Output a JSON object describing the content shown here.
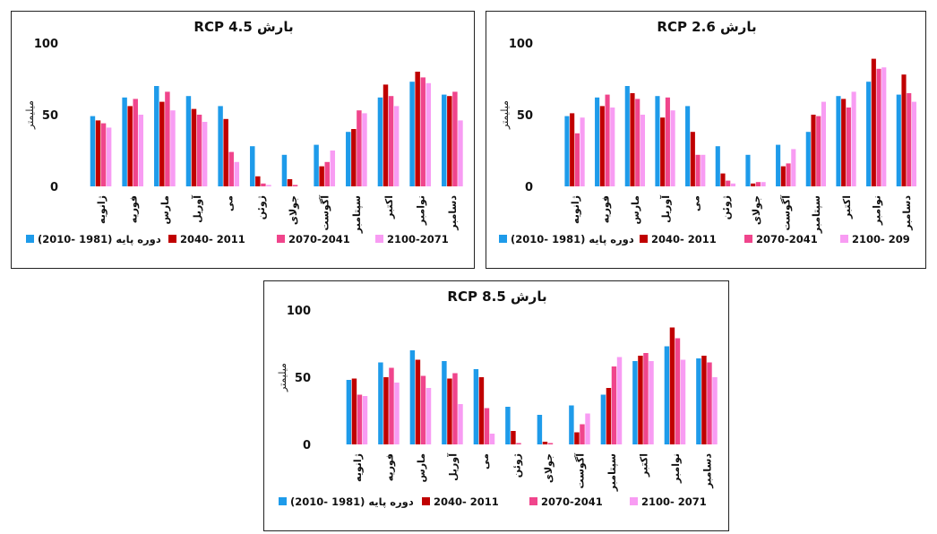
{
  "colors": [
    "#1E9BEA",
    "#C00000",
    "#F0458C",
    "#F89CF3"
  ],
  "chart_data": [
    {
      "type": "bar",
      "title": "بارش RCP 4.5",
      "ylabel": "میلیمتر",
      "xlabel": "",
      "ylim": [
        0,
        100
      ],
      "yticks": [
        "0",
        "50",
        "100"
      ],
      "grid": false,
      "legend": "bottom",
      "categories": [
        "ژانویه",
        "فوریه",
        "مارس",
        "آوریل",
        "می",
        "ژوئن",
        "جولای",
        "آگوست",
        "سپتامبر",
        "اکتبر",
        "نوامبر",
        "دسامبر"
      ],
      "series": [
        {
          "name": "دوره پایه (1981 -2010)",
          "values": [
            49,
            62,
            70,
            63,
            56,
            28,
            22,
            29,
            38,
            62,
            73,
            64
          ]
        },
        {
          "name": "2040- 2011",
          "values": [
            46,
            56,
            59,
            54,
            47,
            7,
            5,
            14,
            40,
            71,
            80,
            63
          ]
        },
        {
          "name": "2070-2041",
          "values": [
            44,
            61,
            66,
            50,
            24,
            2,
            1,
            17,
            53,
            63,
            76,
            66
          ]
        },
        {
          "name": "2100-2071",
          "values": [
            41,
            50,
            53,
            45,
            17,
            1,
            0,
            25,
            51,
            56,
            72,
            46
          ]
        }
      ]
    },
    {
      "type": "bar",
      "title": "بارش RCP 2.6",
      "ylabel": "میلیمتر",
      "xlabel": "",
      "ylim": [
        0,
        100
      ],
      "yticks": [
        "0",
        "50",
        "100"
      ],
      "grid": false,
      "legend": "bottom",
      "categories": [
        "ژانویه",
        "فوریه",
        "مارس",
        "آوریل",
        "می",
        "ژوئن",
        "جولای",
        "آگوست",
        "سپتامبر",
        "اکتبر",
        "نوامبر",
        "دسامبر"
      ],
      "series": [
        {
          "name": "دوره پایه (1981 -2010)",
          "values": [
            49,
            62,
            70,
            63,
            56,
            28,
            22,
            29,
            38,
            63,
            73,
            64
          ]
        },
        {
          "name": "2040- 2011",
          "values": [
            51,
            56,
            65,
            48,
            38,
            9,
            2,
            14,
            50,
            61,
            89,
            78
          ]
        },
        {
          "name": "2070-2041",
          "values": [
            37,
            64,
            61,
            62,
            22,
            4,
            3,
            16,
            49,
            55,
            82,
            65
          ]
        },
        {
          "name": "2100- 209",
          "values": [
            48,
            55,
            50,
            53,
            22,
            2,
            3,
            26,
            59,
            66,
            83,
            59
          ]
        }
      ]
    },
    {
      "type": "bar",
      "title": "بارش RCP 8.5",
      "ylabel": "میلیمتر",
      "xlabel": "",
      "ylim": [
        0,
        100
      ],
      "yticks": [
        "0",
        "50",
        "100"
      ],
      "grid": false,
      "legend": "bottom",
      "categories": [
        "ژانویه",
        "فوریه",
        "مارس",
        "آوریل",
        "می",
        "ژوئن",
        "جولای",
        "آگوست",
        "سپتامبر",
        "اکتبر",
        "نوامبر",
        "دسامبر"
      ],
      "series": [
        {
          "name": "دوره پایه (1981 -2010)",
          "values": [
            48,
            61,
            70,
            62,
            56,
            28,
            22,
            29,
            37,
            62,
            73,
            64
          ]
        },
        {
          "name": "2040- 2011",
          "values": [
            49,
            50,
            63,
            49,
            50,
            10,
            2,
            9,
            42,
            66,
            87,
            66
          ]
        },
        {
          "name": "2070-2041",
          "values": [
            37,
            57,
            51,
            53,
            27,
            1,
            1,
            15,
            58,
            68,
            79,
            61
          ]
        },
        {
          "name": "2100- 2071",
          "values": [
            36,
            46,
            42,
            30,
            8,
            0,
            0,
            23,
            65,
            62,
            63,
            50
          ]
        }
      ]
    }
  ]
}
